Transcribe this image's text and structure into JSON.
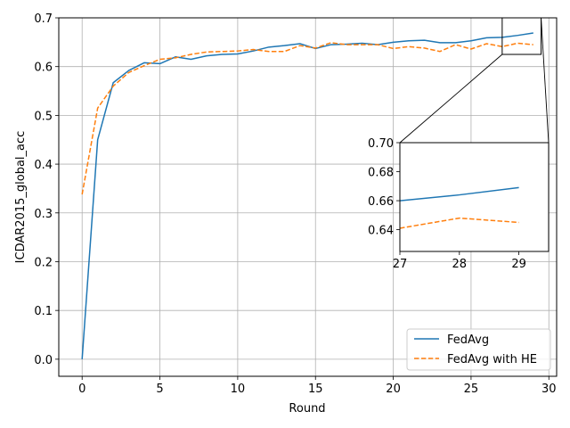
{
  "chart_data": {
    "type": "line",
    "title": "",
    "xlabel": "Round",
    "ylabel": "ICDAR2015_global_acc",
    "xlim": [
      -1.5,
      30.5
    ],
    "ylim": [
      -0.035,
      0.7
    ],
    "xticks": [
      0,
      5,
      10,
      15,
      20,
      25,
      30
    ],
    "yticks": [
      0.0,
      0.1,
      0.2,
      0.3,
      0.4,
      0.5,
      0.6,
      0.7
    ],
    "ytick_labels": [
      "0.0",
      "0.1",
      "0.2",
      "0.3",
      "0.4",
      "0.5",
      "0.6",
      "0.7"
    ],
    "grid": true,
    "legend_position": "lower-right",
    "x": [
      0,
      1,
      2,
      3,
      4,
      5,
      6,
      7,
      8,
      9,
      10,
      11,
      12,
      13,
      14,
      15,
      16,
      17,
      18,
      19,
      20,
      21,
      22,
      23,
      24,
      25,
      26,
      27,
      28,
      29
    ],
    "series": [
      {
        "name": "FedAvg",
        "color": "#1f77b4",
        "dash": "solid",
        "values": [
          0.0,
          0.45,
          0.567,
          0.592,
          0.608,
          0.606,
          0.62,
          0.615,
          0.622,
          0.625,
          0.626,
          0.632,
          0.64,
          0.643,
          0.647,
          0.637,
          0.645,
          0.646,
          0.648,
          0.645,
          0.65,
          0.653,
          0.654,
          0.649,
          0.649,
          0.653,
          0.659,
          0.66,
          0.664,
          0.669
        ]
      },
      {
        "name": "FedAvg with HE",
        "color": "#ff7f0e",
        "dash": "dashed",
        "values": [
          0.338,
          0.515,
          0.56,
          0.588,
          0.602,
          0.615,
          0.618,
          0.625,
          0.63,
          0.631,
          0.632,
          0.635,
          0.631,
          0.631,
          0.643,
          0.638,
          0.649,
          0.645,
          0.645,
          0.645,
          0.637,
          0.641,
          0.638,
          0.631,
          0.645,
          0.636,
          0.647,
          0.641,
          0.648,
          0.645
        ]
      }
    ],
    "inset": {
      "xlim": [
        27,
        29.5
      ],
      "ylim": [
        0.625,
        0.7
      ],
      "xticks": [
        27,
        28,
        29
      ],
      "yticks": [
        0.64,
        0.66,
        0.68,
        0.7
      ],
      "ytick_labels": [
        "0.64",
        "0.66",
        "0.68",
        "0.70"
      ]
    }
  }
}
